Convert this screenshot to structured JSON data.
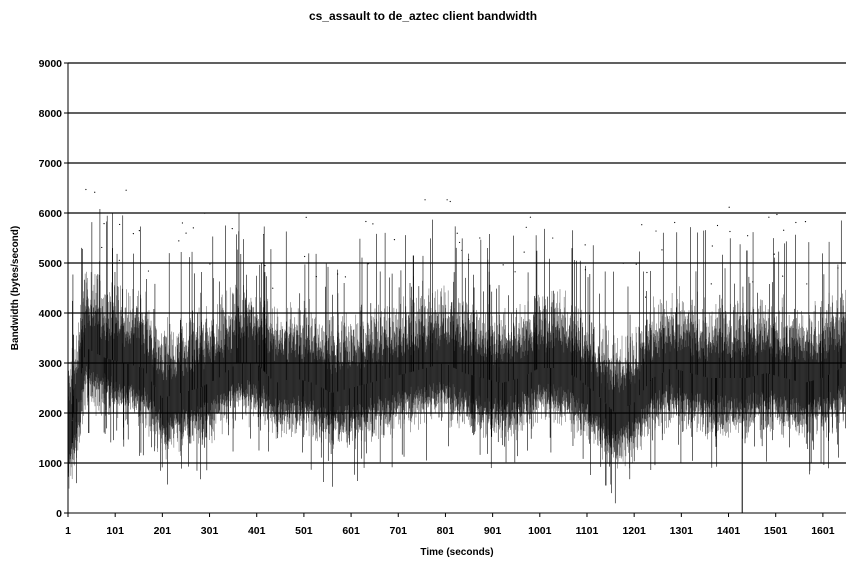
{
  "chart_data": {
    "type": "scatter",
    "title": "cs_assault to de_aztec client bandwidth",
    "xlabel": "Time (seconds)",
    "ylabel": "Bandwidth (bytes/second)",
    "xlim": [
      1,
      1650
    ],
    "ylim": [
      0,
      9000
    ],
    "y_ticks": [
      0,
      1000,
      2000,
      3000,
      4000,
      5000,
      6000,
      7000,
      8000,
      9000
    ],
    "x_ticks": [
      1,
      101,
      201,
      301,
      401,
      501,
      601,
      701,
      801,
      901,
      1001,
      1101,
      1201,
      1301,
      1401,
      1501,
      1601
    ],
    "y_tick_labels": [
      "0",
      "1000",
      "2000",
      "3000",
      "4000",
      "5000",
      "6000",
      "7000",
      "8000",
      "9000"
    ],
    "x_tick_labels": [
      "1",
      "101",
      "201",
      "301",
      "401",
      "501",
      "601",
      "701",
      "801",
      "901",
      "1001",
      "1101",
      "1201",
      "1301",
      "1401",
      "1501",
      "1601"
    ],
    "grid": true,
    "series": [
      {
        "color": "#000000",
        "x": [
          1,
          40,
          80,
          120,
          160,
          200,
          240,
          280,
          320,
          360,
          400,
          440,
          480,
          520,
          560,
          600,
          640,
          680,
          720,
          760,
          800,
          840,
          880,
          920,
          960,
          1000,
          1040,
          1080,
          1120,
          1160,
          1200,
          1240,
          1280,
          1320,
          1360,
          1400,
          1440,
          1480,
          1520,
          1560,
          1600,
          1640
        ],
        "y": [
          1400,
          3300,
          3100,
          3000,
          2900,
          2300,
          2400,
          2500,
          2700,
          3000,
          3000,
          2600,
          2700,
          2600,
          2400,
          2500,
          2600,
          2700,
          2800,
          2900,
          3000,
          2800,
          2700,
          2600,
          2700,
          2900,
          2900,
          2700,
          2400,
          2000,
          2200,
          2700,
          2900,
          2800,
          2700,
          2700,
          2700,
          2800,
          2700,
          2600,
          2700,
          2900
        ]
      }
    ],
    "notable_points": [
      {
        "x": 1,
        "y": 0
      },
      {
        "x": 10,
        "y": 1400
      },
      {
        "x": 45,
        "y": 1600
      },
      {
        "x": 1141,
        "y": 550
      },
      {
        "x": 1430,
        "y": 0
      },
      {
        "x": 1440,
        "y": 5250
      },
      {
        "x": 733,
        "y": 5150
      }
    ]
  }
}
